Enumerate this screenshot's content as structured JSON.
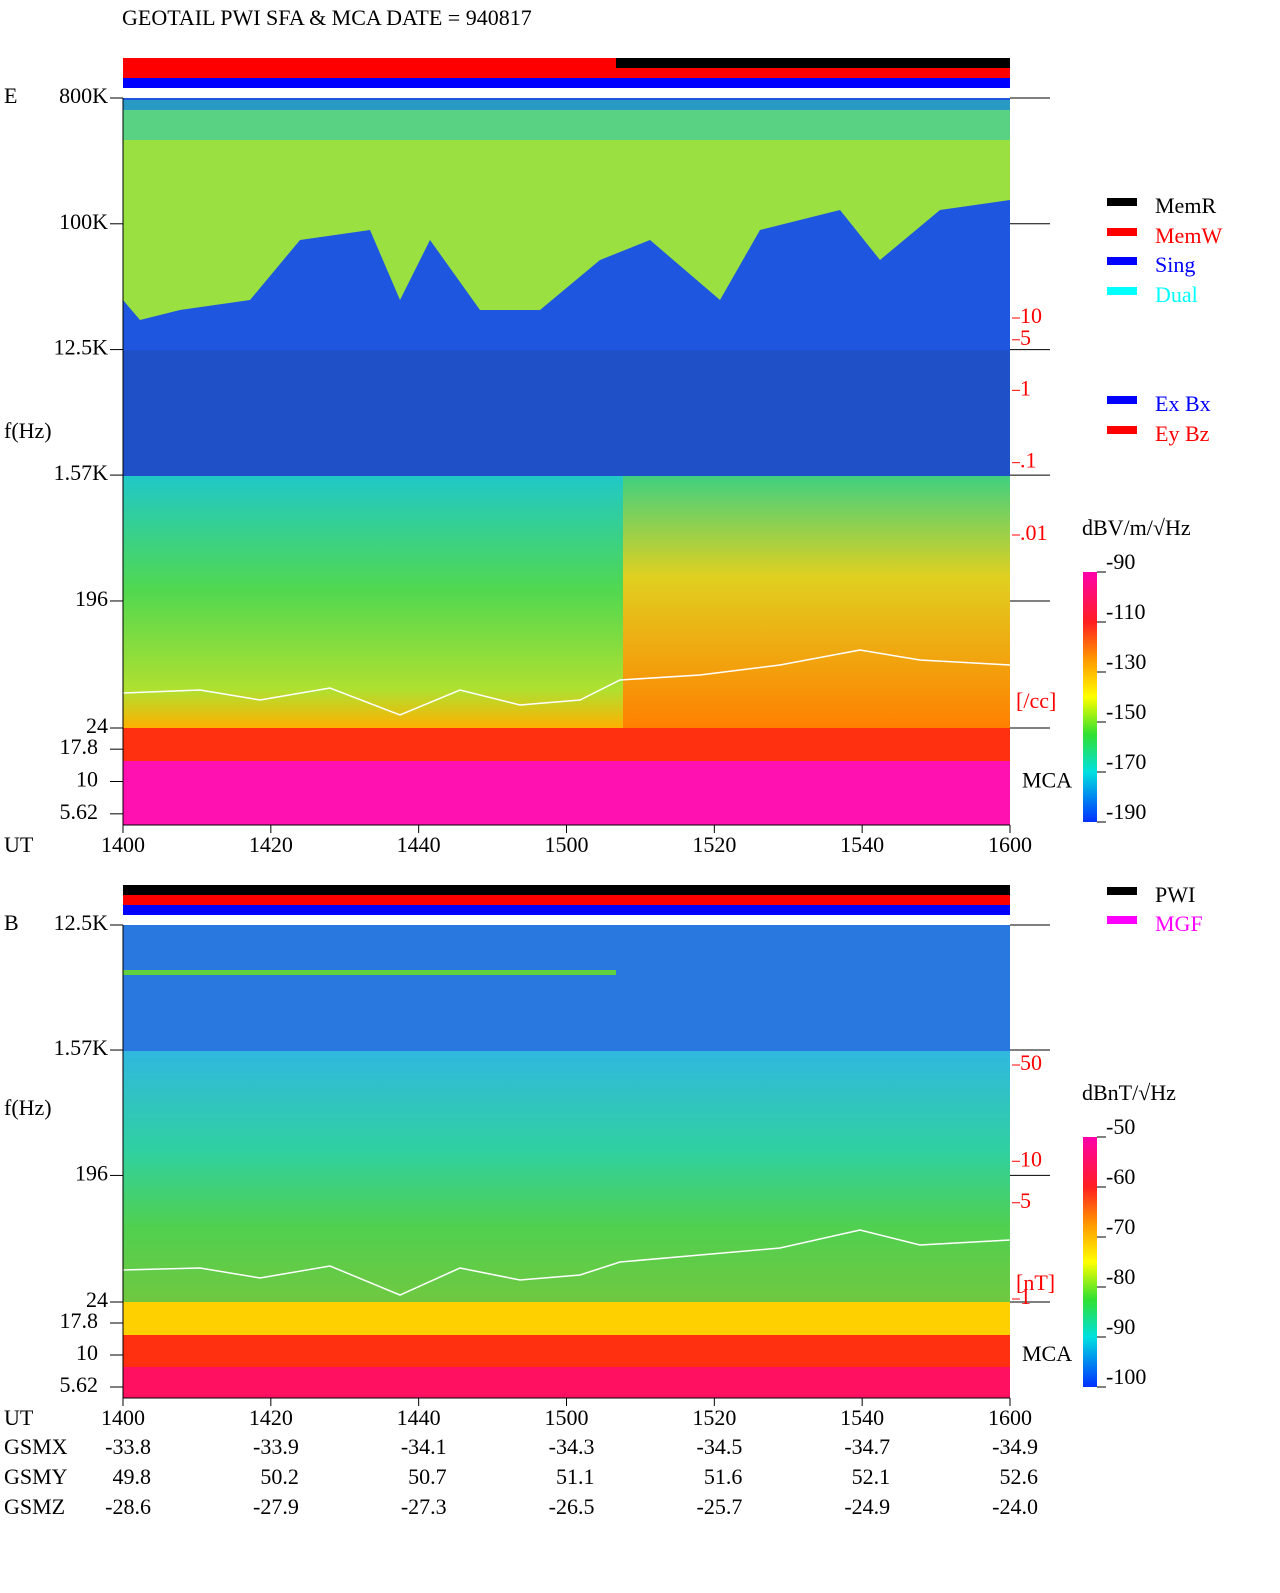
{
  "title": "GEOTAIL  PWI SFA & MCA   DATE = 940817",
  "chart_data": [
    {
      "type": "spectrogram",
      "panel_label": "E",
      "y_label": "f(Hz)",
      "x_label": "UT",
      "xticks": [
        "1400",
        "1420",
        "1440",
        "1500",
        "1520",
        "1540",
        "1600"
      ],
      "log_y": true,
      "ylim": [
        24,
        800000
      ],
      "yticks": [
        {
          "value": 800000,
          "label": "800K"
        },
        {
          "value": 100000,
          "label": "100K"
        },
        {
          "value": 12500,
          "label": "12.5K"
        },
        {
          "value": 1570,
          "label": "1.57K"
        },
        196,
        24
      ],
      "mca_label": "MCA",
      "mca_ticks": [
        17.8,
        10,
        5.62
      ],
      "colorbar_label": "dBV/m/√Hz",
      "colorbar_lim": [
        -190,
        -90
      ],
      "colorbar_ticks": [
        -90,
        -110,
        -130,
        -150,
        -170,
        -190
      ],
      "density_label": "[/cc]",
      "density_lim": [
        0.01,
        10
      ],
      "density_ticks": [
        10,
        5,
        1,
        {
          "value": 0.1,
          "label": ".1"
        },
        {
          "value": 0.01,
          "label": ".01"
        }
      ],
      "legend": [
        {
          "name": "MemR",
          "color": "#000000"
        },
        {
          "name": "MemW",
          "color": "#ff0000"
        },
        {
          "name": "Sing",
          "color": "#0000ff"
        },
        {
          "name": "Dual",
          "color": "#00ffff"
        }
      ],
      "legend2": [
        {
          "name": "Ex Bx",
          "color": "#0000ff"
        },
        {
          "name": "Ey Bz",
          "color": "#ff0000"
        }
      ]
    },
    {
      "type": "spectrogram",
      "panel_label": "B",
      "y_label": "f(Hz)",
      "x_label": "UT",
      "xticks": [
        "1400",
        "1420",
        "1440",
        "1500",
        "1520",
        "1540",
        "1600"
      ],
      "log_y": true,
      "ylim": [
        24,
        12500
      ],
      "yticks": [
        {
          "value": 12500,
          "label": "12.5K"
        },
        {
          "value": 1570,
          "label": "1.57K"
        },
        196,
        24
      ],
      "mca_label": "MCA",
      "mca_ticks": [
        17.8,
        10,
        5.62
      ],
      "colorbar_label": "dBnT/√Hz",
      "colorbar_lim": [
        -100,
        -50
      ],
      "colorbar_ticks": [
        -50,
        -60,
        -70,
        -80,
        -90,
        -100
      ],
      "density_label": "[nT]",
      "density_lim": [
        1,
        50
      ],
      "density_ticks": [
        50,
        10,
        5,
        1
      ],
      "legend": [
        {
          "name": "PWI",
          "color": "#000000"
        },
        {
          "name": "MGF",
          "color": "#ff00ff"
        }
      ]
    }
  ],
  "orbit_table": {
    "rows": [
      {
        "label": "GSMX",
        "values": [
          "-33.8",
          "-33.9",
          "-34.1",
          "-34.3",
          "-34.5",
          "-34.7",
          "-34.9"
        ]
      },
      {
        "label": "GSMY",
        "values": [
          "49.8",
          "50.2",
          "50.7",
          "51.1",
          "51.6",
          "52.1",
          "52.6"
        ]
      },
      {
        "label": "GSMZ",
        "values": [
          "-28.6",
          "-27.9",
          "-27.3",
          "-26.5",
          "-25.7",
          "-24.9",
          "-24.0"
        ]
      }
    ]
  }
}
